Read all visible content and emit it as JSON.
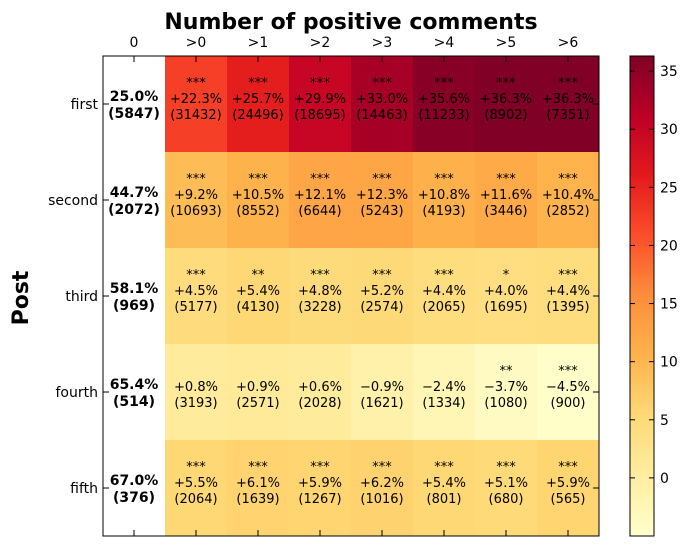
{
  "chart_data": {
    "type": "heatmap",
    "title": "Number of positive comments",
    "ylabel": "Post",
    "xlabel": "",
    "columns": [
      "0",
      ">0",
      ">1",
      ">2",
      ">3",
      ">4",
      ">5",
      ">6"
    ],
    "rows": [
      "first",
      "second",
      "third",
      "fourth",
      "fifth"
    ],
    "baseline": [
      {
        "percent": "25.0%",
        "count": "(5847)"
      },
      {
        "percent": "44.7%",
        "count": "(2072)"
      },
      {
        "percent": "58.1%",
        "count": "(969)"
      },
      {
        "percent": "65.4%",
        "count": "(514)"
      },
      {
        "percent": "67.0%",
        "count": "(376)"
      }
    ],
    "values": [
      [
        22.3,
        25.7,
        29.9,
        33.0,
        35.6,
        36.3,
        36.3
      ],
      [
        9.2,
        10.5,
        12.1,
        12.3,
        10.8,
        11.6,
        10.4
      ],
      [
        4.5,
        5.4,
        4.8,
        5.2,
        4.4,
        4.0,
        4.4
      ],
      [
        0.8,
        0.9,
        0.6,
        -0.9,
        -2.4,
        -3.7,
        -4.5
      ],
      [
        5.5,
        6.1,
        5.9,
        6.2,
        5.4,
        5.1,
        5.9
      ]
    ],
    "labels": [
      [
        "+22.3%",
        "+25.7%",
        "+29.9%",
        "+33.0%",
        "+35.6%",
        "+36.3%",
        "+36.3%"
      ],
      [
        "+9.2%",
        "+10.5%",
        "+12.1%",
        "+12.3%",
        "+10.8%",
        "+11.6%",
        "+10.4%"
      ],
      [
        "+4.5%",
        "+5.4%",
        "+4.8%",
        "+5.2%",
        "+4.4%",
        "+4.0%",
        "+4.4%"
      ],
      [
        "+0.8%",
        "+0.9%",
        "+0.6%",
        "−0.9%",
        "−2.4%",
        "−3.7%",
        "−4.5%"
      ],
      [
        "+5.5%",
        "+6.1%",
        "+5.9%",
        "+6.2%",
        "+5.4%",
        "+5.1%",
        "+5.9%"
      ]
    ],
    "counts": [
      [
        "(31432)",
        "(24496)",
        "(18695)",
        "(14463)",
        "(11233)",
        "(8902)",
        "(7351)"
      ],
      [
        "(10693)",
        "(8552)",
        "(6644)",
        "(5243)",
        "(4193)",
        "(3446)",
        "(2852)"
      ],
      [
        "(5177)",
        "(4130)",
        "(3228)",
        "(2574)",
        "(2065)",
        "(1695)",
        "(1395)"
      ],
      [
        "(3193)",
        "(2571)",
        "(2028)",
        "(1621)",
        "(1334)",
        "(1080)",
        "(900)"
      ],
      [
        "(2064)",
        "(1639)",
        "(1267)",
        "(1016)",
        "(801)",
        "(680)",
        "(565)"
      ]
    ],
    "significance": [
      [
        "***",
        "***",
        "***",
        "***",
        "***",
        "***",
        "***"
      ],
      [
        "***",
        "***",
        "***",
        "***",
        "***",
        "***",
        "***"
      ],
      [
        "***",
        "**",
        "***",
        "***",
        "***",
        "*",
        "***"
      ],
      [
        "",
        "",
        "",
        "",
        "",
        "**",
        "***"
      ],
      [
        "***",
        "***",
        "***",
        "***",
        "***",
        "***",
        "***"
      ]
    ],
    "colorbar": {
      "colormap": "YlOrRd",
      "range": [
        -5,
        36.3
      ],
      "ticks": [
        0,
        5,
        10,
        15,
        20,
        25,
        30,
        35
      ]
    },
    "grid": false
  }
}
